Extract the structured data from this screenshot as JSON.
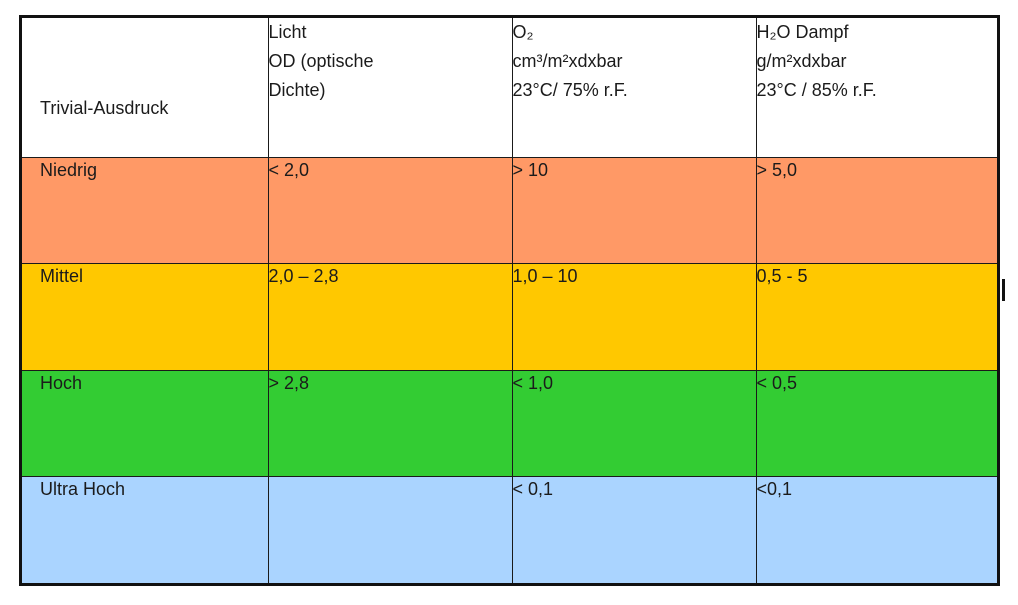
{
  "table": {
    "header": {
      "col1": [
        "Trivial-Ausdruck"
      ],
      "col2": [
        "Licht",
        "OD (optische",
        "Dichte)"
      ],
      "col3": [
        "O₂",
        "cm³/m²xdxbar",
        "23°C/ 75% r.F."
      ],
      "col4": [
        "H₂O Dampf",
        "g/m²xdxbar",
        "23°C / 85% r.F."
      ]
    },
    "rows": [
      {
        "label": "Niedrig",
        "licht": "< 2,0",
        "o2": "> 10",
        "h2o": "> 5,0",
        "color": "#ff9966"
      },
      {
        "label": "Mittel",
        "licht": "2,0 – 2,8",
        "o2": "1,0 – 10",
        "h2o": "0,5 - 5",
        "color": "#ffc800"
      },
      {
        "label": "Hoch",
        "licht": "> 2,8",
        "o2": "< 1,0",
        "h2o": "< 0,5",
        "color": "#33cc33"
      },
      {
        "label": "Ultra Hoch",
        "licht": "",
        "o2": "< 0,1",
        "h2o": "<0,1",
        "color": "#aad4ff"
      }
    ]
  }
}
